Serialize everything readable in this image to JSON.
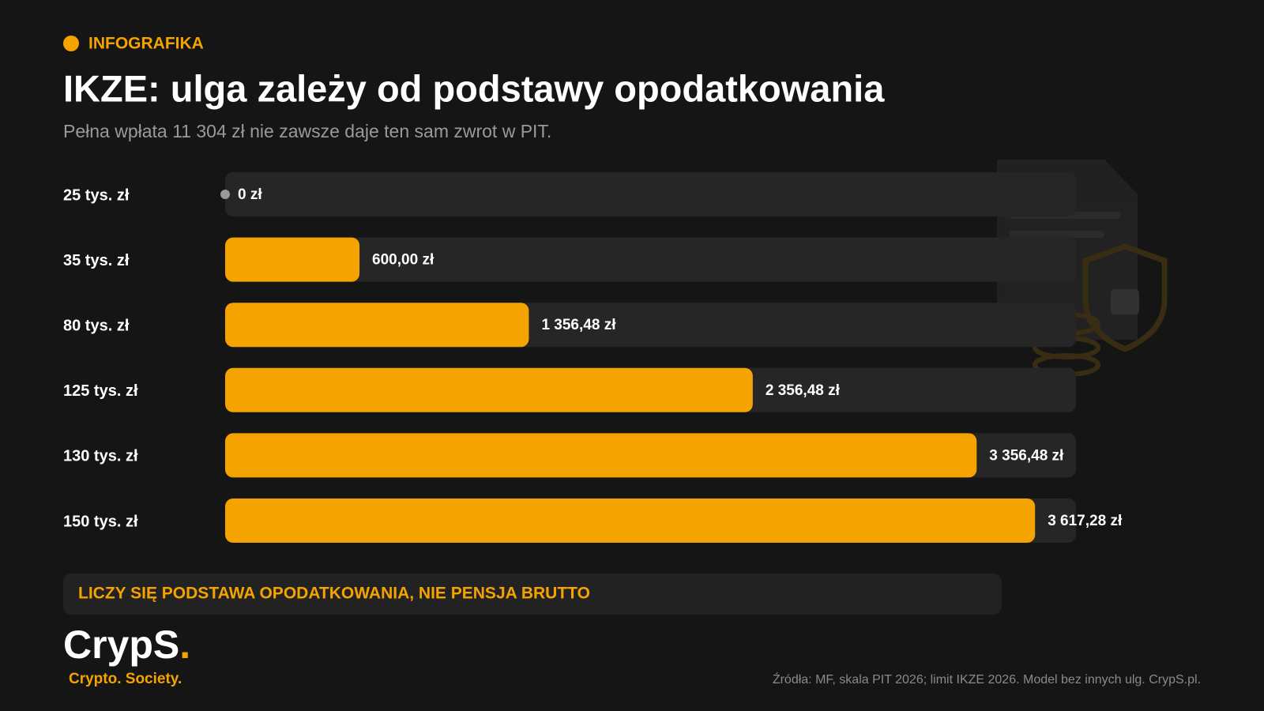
{
  "header": {
    "tag": "INFOGRAFIKA",
    "title": "IKZE: ulga zależy od podstawy opodatkowania",
    "subtitle": "Pełna wpłata 11 304 zł nie zawsze daje ten sam zwrot w PIT."
  },
  "chart_data": {
    "type": "hbar",
    "categories": [
      "25 tys. zł",
      "35 tys. zł",
      "80 tys. zł",
      "125 tys. zł",
      "130 tys. zł",
      "150 tys. zł"
    ],
    "values": [
      0,
      600,
      1356.48,
      2356.48,
      3356.48,
      3617.28
    ],
    "value_labels": [
      "0 zł",
      "600,00 zł",
      "1 356,48 zł",
      "2 356,48 zł",
      "3 356,48 zł",
      "3 617,28 zł"
    ],
    "color": "#f5a300",
    "xlim": [
      0,
      3800
    ]
  },
  "callout": "LICZY SIĘ PODSTAWA OPODATKOWANIA, NIE PENSJA BRUTTO",
  "footer": {
    "logo": "CrypS",
    "logo_dot": ".",
    "tagline": "Crypto. Society.",
    "source": "Źródła: MF, skala PIT 2026; limit IKZE 2026. Model bez innych ulg. CrypS.pl."
  }
}
